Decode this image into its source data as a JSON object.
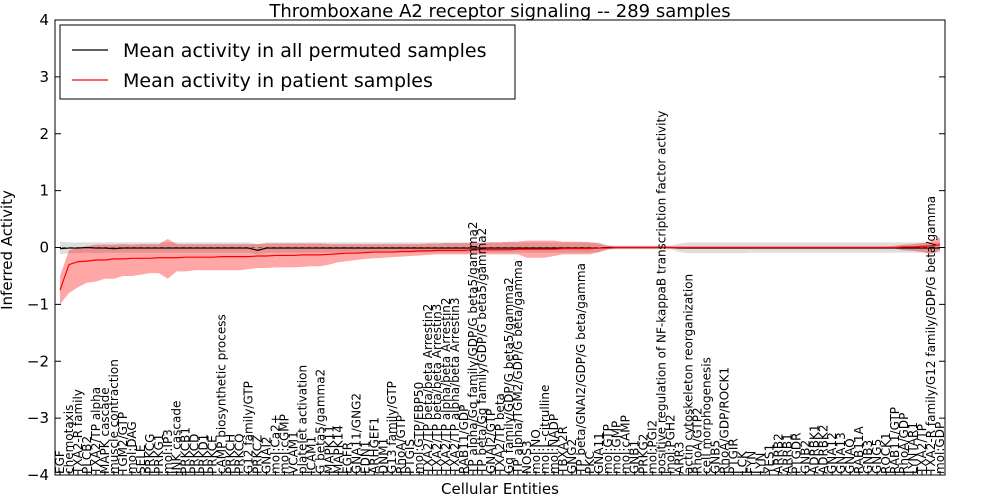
{
  "chart_data": {
    "type": "line",
    "title": "Thromboxane A2 receptor signaling -- 289 samples",
    "xlabel": "Cellular Entities",
    "ylabel": "Inferred Activity",
    "ylim": [
      -4,
      4
    ],
    "yticks": [
      -4,
      -3,
      -2,
      -1,
      0,
      1,
      2,
      3,
      4
    ],
    "legend": {
      "location": "top-left",
      "entries": [
        {
          "label": "Mean activity in all permuted samples",
          "color": "#000000"
        },
        {
          "label": "Mean activity in patient samples",
          "color": "#ff0000"
        }
      ]
    },
    "categories": [
      "EGF",
      "chemotaxis",
      "TXA2-R family",
      "PLCB2",
      "TXA2/TP alpha",
      "MAPK cascade",
      "muscle contraction",
      "TGM2/GTP",
      "mol:DAG",
      "SELE",
      "PRKCG",
      "PRKG1",
      "mol:IP3",
      "JNK cascade",
      "PRKCB1",
      "PRKCD",
      "PRKD1",
      "PRKCE",
      "cAMP biosynthetic process",
      "PRKCH",
      "PRKCQ",
      "G12 family/GTP",
      "PRKCZ",
      "GNAI2",
      "mol:Ca2+",
      "mol:cGMP",
      "VCAM1",
      "platelet activation",
      "ICAM1",
      "G beta5/gamma2",
      "MAPK11",
      "MAPK14",
      "EGFR",
      "GNA11/GNG2",
      "EDN1",
      "ARHGEF1",
      "DNM1",
      "G13 family/GTP",
      "RhoA/GTP",
      "PTGIS",
      "mol:GTP/EBP50",
      "TXA2/TP beta/beta Arrestin2",
      "TXA2/TP beta/beta Arrestin3",
      "TXA2/TP alpha/beta Arrestin2",
      "TXA2/TP alpha/beta Arrestin3",
      "RAB11/GDP",
      "TP alpha/Gq family/GDP/G beta5/gamma2",
      "TP beta/Gq family/GDP/G beta5/gamma2",
      "GNAI2/GTP",
      "TXA2/TP beta",
      "Gq family/GDP/G beta5/gamma2",
      "TP alpha/TGM2/GDP/G beta/gamma",
      "NOS3",
      "mol:NO",
      "mol:L-citrulline",
      "mol:NADP",
      "TBXA2R",
      "GNG2",
      "TP beta/GNAI2/GDP/G beta/gamma",
      "PKC",
      "GNA11",
      "mol:GTP",
      "mol:GMP",
      "mol:cAMP",
      "GNB1",
      "PRKG2",
      "mol:PGI2",
      "positive regulation of NF-kappaB transcription factor activity",
      "mol:PGH2",
      "ARR3",
      "actin cytoskeleton reorganization",
      "RhoA/GTP2",
      "cell morphogenesis",
      "GNB5",
      "RhoA/GDP/ROCK1",
      "PTGIR",
      "LCK",
      "FYN",
      "LYN",
      "YES1",
      "ARRB2",
      "ARRB1",
      "PTGDR",
      "GNB2",
      "ADRBK1",
      "ADRBK2",
      "GNA12",
      "GNA13",
      "GNAQ",
      "RAB11A",
      "GNB3",
      "GNG5",
      "ROCK1",
      "RAB11/GTP",
      "RhoA/GDP",
      "LYNTAR1",
      "TXA2/TP",
      "TXA2-R family/G12 family/GDP/G beta/gamma",
      "mol:GDP"
    ],
    "series": [
      {
        "name": "Mean activity in all permuted samples",
        "color": "#000000",
        "values": [
          -0.02,
          -0.01,
          -0.01,
          0.0,
          -0.01,
          -0.01,
          -0.02,
          -0.01,
          -0.01,
          -0.01,
          -0.01,
          -0.01,
          -0.01,
          -0.01,
          -0.01,
          -0.01,
          -0.01,
          -0.01,
          -0.01,
          -0.01,
          -0.01,
          -0.01,
          -0.05,
          -0.01,
          -0.01,
          -0.01,
          -0.01,
          -0.01,
          -0.01,
          -0.01,
          -0.01,
          -0.01,
          -0.01,
          -0.01,
          -0.01,
          -0.01,
          -0.01,
          -0.01,
          -0.01,
          -0.01,
          -0.01,
          -0.01,
          -0.01,
          -0.01,
          -0.01,
          -0.01,
          -0.01,
          -0.01,
          -0.01,
          -0.01,
          -0.01,
          -0.01,
          -0.01,
          -0.01,
          -0.01,
          -0.01,
          -0.01,
          -0.01,
          -0.01,
          -0.01,
          -0.01,
          0.0,
          0.0,
          0.0,
          0.0,
          0.0,
          0.0,
          0.0,
          0.0,
          -0.01,
          -0.01,
          -0.01,
          -0.01,
          -0.01,
          -0.01,
          -0.01,
          -0.01,
          -0.01,
          -0.01,
          -0.01,
          -0.01,
          -0.01,
          -0.01,
          -0.01,
          -0.01,
          -0.01,
          -0.01,
          -0.01,
          -0.01,
          -0.01,
          -0.01,
          -0.01,
          -0.01,
          -0.01,
          -0.01,
          -0.01,
          -0.01,
          -0.01,
          -0.01
        ]
      },
      {
        "name": "Mean activity in patient samples",
        "color": "#ff0000",
        "values": [
          -0.75,
          -0.3,
          -0.25,
          -0.24,
          -0.22,
          -0.22,
          -0.2,
          -0.2,
          -0.19,
          -0.19,
          -0.19,
          -0.18,
          -0.18,
          -0.18,
          -0.17,
          -0.17,
          -0.17,
          -0.17,
          -0.16,
          -0.16,
          -0.16,
          -0.16,
          -0.15,
          -0.15,
          -0.14,
          -0.14,
          -0.14,
          -0.13,
          -0.13,
          -0.13,
          -0.12,
          -0.11,
          -0.1,
          -0.1,
          -0.09,
          -0.08,
          -0.08,
          -0.08,
          -0.07,
          -0.07,
          -0.06,
          -0.06,
          -0.05,
          -0.05,
          -0.05,
          -0.05,
          -0.04,
          -0.04,
          -0.04,
          -0.04,
          -0.04,
          -0.03,
          -0.03,
          -0.03,
          -0.03,
          -0.03,
          -0.02,
          -0.02,
          -0.02,
          -0.02,
          -0.01,
          -0.01,
          0.0,
          0.0,
          0.0,
          0.0,
          0.0,
          0.0,
          0.0,
          0.0,
          0.0,
          0.0,
          0.0,
          0.0,
          0.0,
          0.0,
          0.0,
          0.0,
          0.0,
          0.0,
          0.0,
          0.0,
          0.0,
          0.0,
          0.0,
          0.0,
          0.0,
          0.0,
          0.0,
          0.0,
          0.0,
          0.0,
          0.0,
          0.0,
          0.01,
          0.01,
          0.02,
          0.03,
          0.05
        ]
      }
    ],
    "bands": [
      {
        "name": "permuted-band",
        "color": "#c8c8c8",
        "lower": [
          -0.12,
          -0.1,
          -0.1,
          -0.09,
          -0.1,
          -0.09,
          -0.09,
          -0.09,
          -0.09,
          -0.09,
          -0.09,
          -0.09,
          -0.09,
          -0.09,
          -0.09,
          -0.09,
          -0.09,
          -0.09,
          -0.09,
          -0.09,
          -0.09,
          -0.09,
          -0.12,
          -0.09,
          -0.09,
          -0.09,
          -0.09,
          -0.09,
          -0.09,
          -0.09,
          -0.09,
          -0.09,
          -0.09,
          -0.09,
          -0.09,
          -0.09,
          -0.09,
          -0.09,
          -0.09,
          -0.09,
          -0.09,
          -0.09,
          -0.09,
          -0.09,
          -0.09,
          -0.09,
          -0.09,
          -0.09,
          -0.09,
          -0.09,
          -0.09,
          -0.09,
          -0.09,
          -0.09,
          -0.09,
          -0.09,
          -0.09,
          -0.09,
          -0.09,
          -0.09,
          -0.09,
          -0.04,
          -0.03,
          -0.03,
          -0.03,
          -0.03,
          -0.03,
          -0.03,
          -0.03,
          -0.08,
          -0.1,
          -0.1,
          -0.1,
          -0.1,
          -0.1,
          -0.1,
          -0.1,
          -0.09,
          -0.09,
          -0.09,
          -0.09,
          -0.09,
          -0.09,
          -0.09,
          -0.09,
          -0.09,
          -0.09,
          -0.09,
          -0.09,
          -0.09,
          -0.09,
          -0.09,
          -0.09,
          -0.09,
          -0.09,
          -0.09,
          -0.09,
          -0.09,
          -0.09
        ],
        "upper": [
          0.1,
          0.09,
          0.09,
          0.09,
          0.09,
          0.09,
          0.09,
          0.09,
          0.09,
          0.09,
          0.09,
          0.09,
          0.09,
          0.09,
          0.09,
          0.09,
          0.09,
          0.09,
          0.09,
          0.09,
          0.09,
          0.09,
          0.06,
          0.09,
          0.09,
          0.09,
          0.09,
          0.09,
          0.09,
          0.09,
          0.09,
          0.09,
          0.09,
          0.09,
          0.09,
          0.09,
          0.09,
          0.09,
          0.09,
          0.09,
          0.09,
          0.09,
          0.09,
          0.09,
          0.09,
          0.09,
          0.09,
          0.09,
          0.09,
          0.09,
          0.09,
          0.09,
          0.09,
          0.09,
          0.09,
          0.09,
          0.09,
          0.09,
          0.09,
          0.09,
          0.09,
          0.04,
          0.03,
          0.03,
          0.03,
          0.03,
          0.03,
          0.03,
          0.03,
          0.07,
          0.09,
          0.09,
          0.09,
          0.09,
          0.09,
          0.09,
          0.09,
          0.09,
          0.09,
          0.09,
          0.09,
          0.09,
          0.09,
          0.09,
          0.09,
          0.09,
          0.09,
          0.09,
          0.09,
          0.09,
          0.09,
          0.09,
          0.09,
          0.09,
          0.09,
          0.09,
          0.09,
          0.09,
          0.09
        ]
      },
      {
        "name": "patient-band",
        "color": "#ff0000",
        "lower": [
          -1.0,
          -0.8,
          -0.7,
          -0.62,
          -0.6,
          -0.55,
          -0.55,
          -0.5,
          -0.5,
          -0.48,
          -0.45,
          -0.45,
          -0.55,
          -0.42,
          -0.42,
          -0.4,
          -0.4,
          -0.4,
          -0.4,
          -0.4,
          -0.4,
          -0.38,
          -0.36,
          -0.36,
          -0.35,
          -0.35,
          -0.35,
          -0.34,
          -0.33,
          -0.33,
          -0.3,
          -0.26,
          -0.24,
          -0.22,
          -0.2,
          -0.19,
          -0.18,
          -0.17,
          -0.16,
          -0.15,
          -0.14,
          -0.13,
          -0.12,
          -0.12,
          -0.12,
          -0.12,
          -0.12,
          -0.12,
          -0.12,
          -0.12,
          -0.12,
          -0.12,
          -0.18,
          -0.18,
          -0.18,
          -0.15,
          -0.12,
          -0.12,
          -0.12,
          -0.12,
          -0.08,
          -0.03,
          -0.02,
          -0.02,
          -0.02,
          -0.02,
          -0.02,
          -0.02,
          -0.02,
          -0.02,
          -0.02,
          -0.02,
          -0.02,
          -0.02,
          -0.02,
          -0.02,
          -0.02,
          -0.02,
          -0.02,
          -0.02,
          -0.02,
          -0.02,
          -0.02,
          -0.02,
          -0.02,
          -0.02,
          -0.02,
          -0.02,
          -0.02,
          -0.02,
          -0.02,
          -0.02,
          -0.02,
          -0.02,
          -0.05,
          -0.06,
          -0.08,
          -0.12,
          -0.05
        ],
        "upper": [
          -0.5,
          -0.05,
          0.0,
          0.02,
          0.05,
          0.05,
          0.05,
          0.06,
          0.05,
          0.06,
          0.06,
          0.06,
          0.15,
          0.06,
          0.06,
          0.06,
          0.06,
          0.06,
          0.06,
          0.06,
          0.06,
          0.06,
          0.06,
          0.07,
          0.07,
          0.07,
          0.07,
          0.07,
          0.07,
          0.07,
          0.06,
          0.06,
          0.06,
          0.06,
          0.06,
          0.06,
          0.06,
          0.06,
          0.06,
          0.06,
          0.06,
          0.07,
          0.07,
          0.08,
          0.08,
          0.08,
          0.08,
          0.08,
          0.09,
          0.09,
          0.1,
          0.1,
          0.12,
          0.12,
          0.12,
          0.12,
          0.1,
          0.1,
          0.1,
          0.09,
          0.07,
          0.03,
          0.02,
          0.02,
          0.02,
          0.02,
          0.02,
          0.02,
          0.02,
          0.02,
          0.02,
          0.02,
          0.02,
          0.02,
          0.02,
          0.02,
          0.02,
          0.02,
          0.02,
          0.02,
          0.02,
          0.02,
          0.02,
          0.02,
          0.02,
          0.02,
          0.02,
          0.02,
          0.02,
          0.02,
          0.02,
          0.02,
          0.02,
          0.03,
          0.05,
          0.06,
          0.08,
          0.1,
          0.18
        ]
      }
    ]
  }
}
